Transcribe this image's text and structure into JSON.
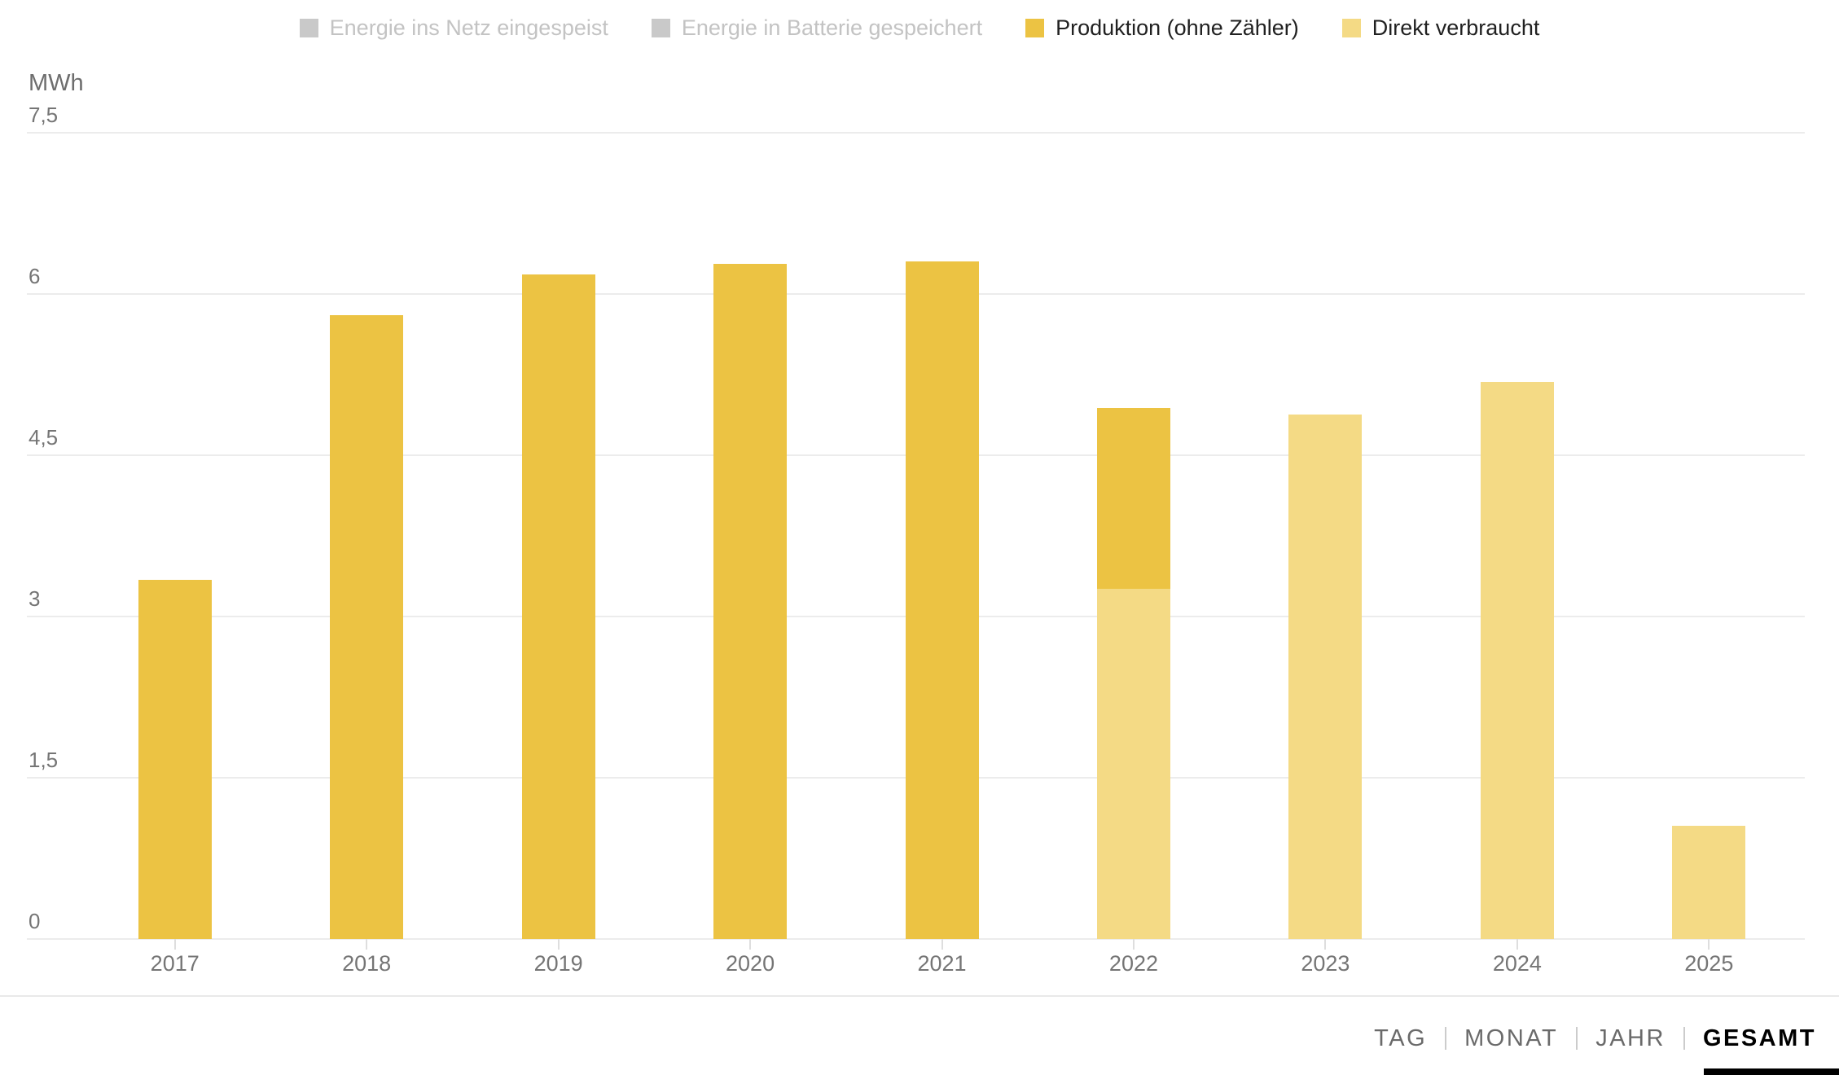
{
  "legend": {
    "items": [
      {
        "label": "Energie ins Netz eingespeist",
        "enabled": false,
        "swatch_color": "#C9C9C9"
      },
      {
        "label": "Energie in Batterie gespeichert",
        "enabled": false,
        "swatch_color": "#C9C9C9"
      },
      {
        "label": "Produktion (ohne Zähler)",
        "enabled": true,
        "swatch_color": "#ECC343"
      },
      {
        "label": "Direkt verbraucht",
        "enabled": true,
        "swatch_color": "#F4DA85"
      }
    ]
  },
  "y_axis": {
    "unit": "MWh"
  },
  "chart_data": {
    "type": "bar",
    "stacked": true,
    "title": "",
    "xlabel": "",
    "ylabel": "MWh",
    "ylim": [
      0,
      7.5
    ],
    "grid": true,
    "legend_position": "top",
    "categories": [
      "2017",
      "2018",
      "2019",
      "2020",
      "2021",
      "2022",
      "2023",
      "2024",
      "2025"
    ],
    "series": [
      {
        "name": "Direkt verbraucht",
        "color": "#F4DA85",
        "values": [
          0,
          0,
          0,
          0,
          0,
          3.26,
          4.88,
          5.18,
          1.05
        ]
      },
      {
        "name": "Produktion (ohne Zähler)",
        "color": "#ECC343",
        "values": [
          3.34,
          5.8,
          6.18,
          6.28,
          6.3,
          1.68,
          0,
          0,
          0
        ]
      }
    ],
    "disabled_series": [
      "Energie ins Netz eingespeist",
      "Energie in Batterie gespeichert"
    ],
    "y_ticks": [
      {
        "value": 0,
        "label": "0"
      },
      {
        "value": 1.5,
        "label": "1,5"
      },
      {
        "value": 3,
        "label": "3"
      },
      {
        "value": 4.5,
        "label": "4,5"
      },
      {
        "value": 6,
        "label": "6"
      },
      {
        "value": 7.5,
        "label": "7,5"
      }
    ]
  },
  "footer": {
    "tabs": [
      {
        "label": "TAG",
        "active": false
      },
      {
        "label": "MONAT",
        "active": false
      },
      {
        "label": "JAHR",
        "active": false
      },
      {
        "label": "GESAMT",
        "active": true
      }
    ]
  }
}
